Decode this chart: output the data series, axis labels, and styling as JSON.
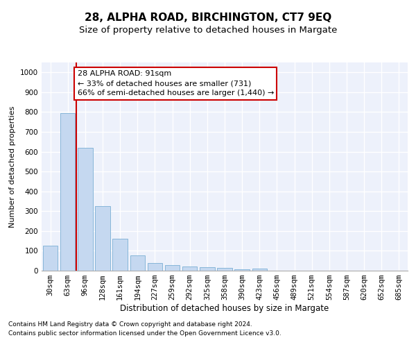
{
  "title": "28, ALPHA ROAD, BIRCHINGTON, CT7 9EQ",
  "subtitle": "Size of property relative to detached houses in Margate",
  "xlabel": "Distribution of detached houses by size in Margate",
  "ylabel": "Number of detached properties",
  "bar_color": "#c5d8f0",
  "bar_edge_color": "#7aafd4",
  "categories": [
    "30sqm",
    "63sqm",
    "96sqm",
    "128sqm",
    "161sqm",
    "194sqm",
    "227sqm",
    "259sqm",
    "292sqm",
    "325sqm",
    "358sqm",
    "390sqm",
    "423sqm",
    "456sqm",
    "489sqm",
    "521sqm",
    "554sqm",
    "587sqm",
    "620sqm",
    "652sqm",
    "685sqm"
  ],
  "values": [
    125,
    795,
    620,
    325,
    160,
    78,
    40,
    28,
    22,
    16,
    14,
    8,
    11,
    0,
    0,
    0,
    0,
    0,
    0,
    0,
    0
  ],
  "vline_x": 1.5,
  "vline_color": "#cc0000",
  "annotation_line1": "28 ALPHA ROAD: 91sqm",
  "annotation_line2": "← 33% of detached houses are smaller (731)",
  "annotation_line3": "66% of semi-detached houses are larger (1,440) →",
  "annotation_box_facecolor": "#ffffff",
  "annotation_box_edgecolor": "#cc0000",
  "ylim": [
    0,
    1050
  ],
  "yticks": [
    0,
    100,
    200,
    300,
    400,
    500,
    600,
    700,
    800,
    900,
    1000
  ],
  "background_color": "#edf1fb",
  "grid_color": "#ffffff",
  "title_fontsize": 11,
  "subtitle_fontsize": 9.5,
  "xlabel_fontsize": 8.5,
  "ylabel_fontsize": 8,
  "tick_fontsize": 7.5,
  "annotation_fontsize": 8,
  "footnote_fontsize": 6.5,
  "footnote1": "Contains HM Land Registry data © Crown copyright and database right 2024.",
  "footnote2": "Contains public sector information licensed under the Open Government Licence v3.0."
}
